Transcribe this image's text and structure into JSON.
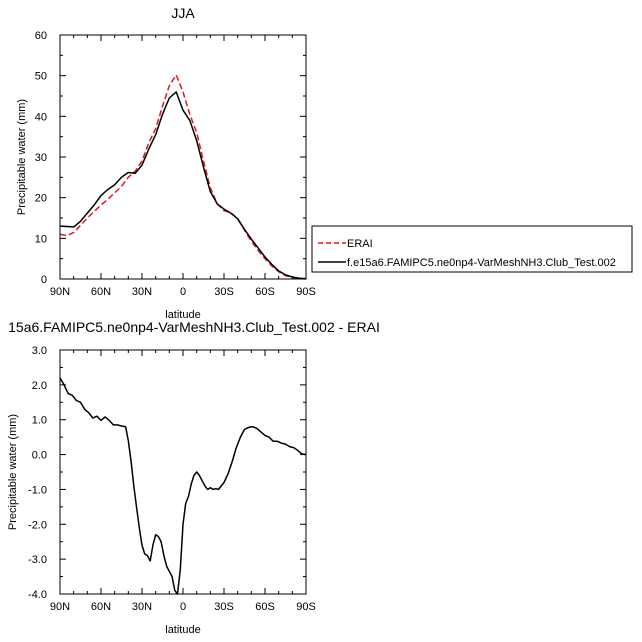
{
  "chart_data": [
    {
      "type": "line",
      "title": "JJA",
      "xlabel": "latitude",
      "ylabel": "Precipitable water (mm)",
      "xlim": [
        90,
        -90
      ],
      "ylim": [
        0,
        60
      ],
      "x_ticks": [
        90,
        60,
        30,
        0,
        -30,
        -60,
        -90
      ],
      "x_tick_labels": [
        "90N",
        "60N",
        "30N",
        "0",
        "30S",
        "60S",
        "90S"
      ],
      "y_ticks": [
        0,
        10,
        20,
        30,
        40,
        50,
        60
      ],
      "y_tick_labels": [
        "0",
        "10",
        "20",
        "30",
        "40",
        "50",
        "60"
      ],
      "grid": false,
      "legend": "right",
      "series": [
        {
          "name": "ERAI",
          "color": "#e0191b",
          "dash": "dashed",
          "x": [
            90,
            85,
            80,
            75,
            70,
            65,
            60,
            55,
            50,
            45,
            40,
            35,
            30,
            25,
            20,
            15,
            10,
            5,
            0,
            -5,
            -10,
            -15,
            -20,
            -25,
            -30,
            -35,
            -40,
            -45,
            -50,
            -55,
            -60,
            -65,
            -70,
            -75,
            -80,
            -85,
            -90
          ],
          "y": [
            11.0,
            10.7,
            11.4,
            13.2,
            15.0,
            16.6,
            18.2,
            19.6,
            21.2,
            22.8,
            25.0,
            26.5,
            29.0,
            33.5,
            37.0,
            42.5,
            47.5,
            50.2,
            46.0,
            40.5,
            36.0,
            29.0,
            22.5,
            18.5,
            16.8,
            16.3,
            14.8,
            12.0,
            9.3,
            7.0,
            5.0,
            3.2,
            1.8,
            0.8,
            0.4,
            0.1,
            0.0
          ]
        },
        {
          "name": "f.e15a6.FAMIPC5.ne0np4-VarMeshNH3.Club_Test.002",
          "color": "#000000",
          "dash": "solid",
          "x": [
            90,
            85,
            80,
            75,
            70,
            65,
            60,
            55,
            50,
            45,
            40,
            35,
            30,
            25,
            20,
            15,
            10,
            5,
            0,
            -5,
            -10,
            -15,
            -20,
            -25,
            -30,
            -35,
            -40,
            -45,
            -50,
            -55,
            -60,
            -65,
            -70,
            -75,
            -80,
            -85,
            -90
          ],
          "y": [
            13.0,
            12.9,
            12.8,
            14.2,
            16.2,
            18.2,
            20.5,
            22.0,
            23.2,
            25.0,
            26.2,
            26.0,
            28.0,
            32.0,
            35.5,
            40.5,
            44.5,
            46.0,
            41.5,
            39.0,
            34.0,
            27.5,
            21.5,
            18.5,
            17.2,
            16.2,
            14.8,
            12.2,
            9.8,
            7.6,
            5.4,
            3.6,
            2.0,
            1.0,
            0.5,
            0.2,
            0.1
          ]
        }
      ]
    },
    {
      "type": "line",
      "title": "15a6.FAMIPC5.ne0np4-VarMeshNH3.Club_Test.002 - ERAI",
      "xlabel": "latitude",
      "ylabel": "Precipitable water (mm)",
      "xlim": [
        90,
        -90
      ],
      "ylim": [
        -4.0,
        3.0
      ],
      "x_ticks": [
        90,
        60,
        30,
        0,
        -30,
        -60,
        -90
      ],
      "x_tick_labels": [
        "90N",
        "60N",
        "30N",
        "0",
        "30S",
        "60S",
        "90S"
      ],
      "y_ticks": [
        3.0,
        2.0,
        1.0,
        0.0,
        -1.0,
        -2.0,
        -3.0,
        -4.0
      ],
      "y_tick_labels": [
        "3.0",
        "2.0",
        "1.0",
        "0.0",
        "-1.0",
        "-2.0",
        "-3.0",
        "-4.0"
      ],
      "grid": false,
      "series": [
        {
          "color": "#000000",
          "dash": "solid",
          "x": [
            90,
            87,
            84,
            81,
            78,
            75,
            72,
            69,
            66,
            63,
            60,
            57,
            54,
            51,
            48,
            45,
            42,
            40,
            38,
            36,
            34,
            32,
            30,
            28,
            26,
            24,
            22,
            20,
            18,
            16,
            14,
            12,
            10,
            8,
            6,
            4,
            2,
            0,
            -2,
            -4,
            -6,
            -8,
            -10,
            -12,
            -14,
            -16,
            -18,
            -20,
            -22,
            -24,
            -26,
            -28,
            -30,
            -33,
            -36,
            -39,
            -42,
            -45,
            -48,
            -51,
            -54,
            -57,
            -60,
            -63,
            -66,
            -69,
            -72,
            -75,
            -78,
            -81,
            -84,
            -87,
            -90
          ],
          "y": [
            2.2,
            2.0,
            1.75,
            1.7,
            1.55,
            1.5,
            1.3,
            1.2,
            1.05,
            1.1,
            0.98,
            1.08,
            0.98,
            0.85,
            0.85,
            0.82,
            0.8,
            0.4,
            -0.2,
            -0.9,
            -1.5,
            -2.1,
            -2.6,
            -2.85,
            -2.9,
            -3.05,
            -2.6,
            -2.3,
            -2.35,
            -2.5,
            -2.9,
            -3.2,
            -3.35,
            -3.5,
            -3.9,
            -4.0,
            -3.3,
            -2.0,
            -1.4,
            -1.2,
            -0.85,
            -0.6,
            -0.5,
            -0.6,
            -0.75,
            -0.9,
            -1.0,
            -0.95,
            -1.0,
            -0.98,
            -1.0,
            -0.9,
            -0.8,
            -0.55,
            -0.2,
            0.2,
            0.5,
            0.72,
            0.78,
            0.8,
            0.75,
            0.65,
            0.55,
            0.5,
            0.38,
            0.38,
            0.33,
            0.3,
            0.23,
            0.2,
            0.12,
            0.02,
            0.0
          ]
        }
      ]
    }
  ]
}
